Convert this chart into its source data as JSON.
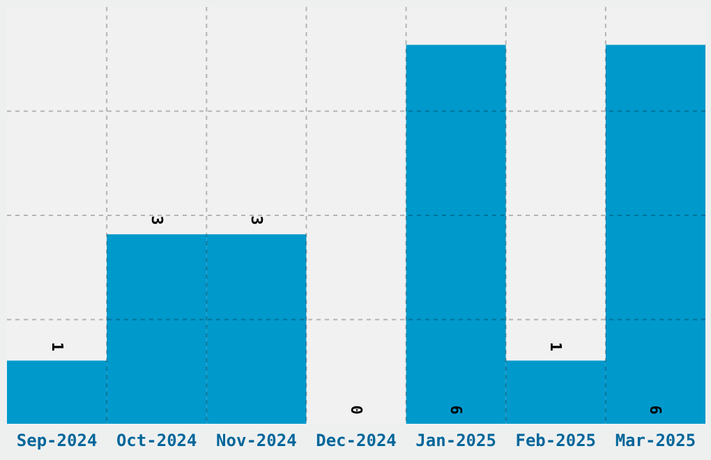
{
  "chart_data": {
    "type": "bar",
    "categories": [
      "Sep-2024",
      "Oct-2024",
      "Nov-2024",
      "Dec-2024",
      "Jan-2025",
      "Feb-2025",
      "Mar-2025"
    ],
    "values": [
      1,
      3,
      3,
      0,
      6,
      1,
      6
    ],
    "color": "#0099cc",
    "ylim": [
      0,
      6.6
    ],
    "yticks": [
      {
        "value": 1.65,
        "label": null
      },
      {
        "value": 3.3,
        "label": null
      },
      {
        "value": 4.95,
        "label": null
      }
    ],
    "grid": true,
    "data_labels": true,
    "tick_labels": "x"
  }
}
